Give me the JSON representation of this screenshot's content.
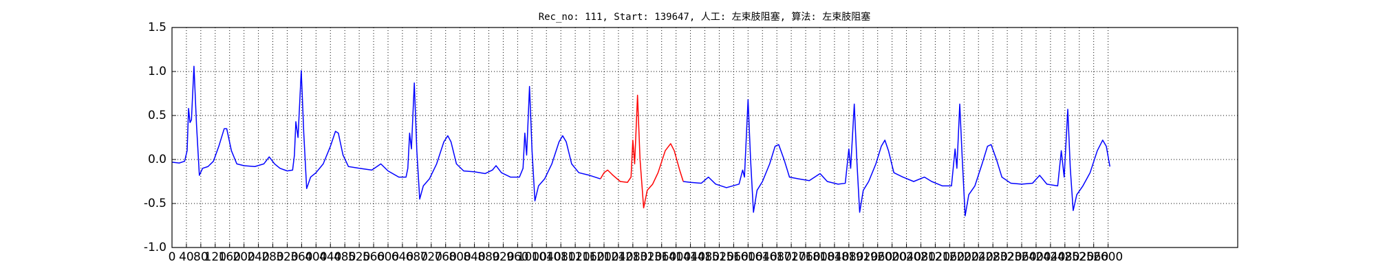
{
  "chart_data": {
    "type": "line",
    "title": "Rec_no: 111, Start: 139647, 人工: 左束肢阻塞, 算法: 左束肢阻塞",
    "xlim": [
      0,
      2960
    ],
    "ylim": [
      -1,
      1.5
    ],
    "xticks": [
      0,
      40,
      80,
      120,
      160,
      200,
      240,
      280,
      320,
      360,
      400,
      440,
      480,
      520,
      560,
      600,
      640,
      680,
      720,
      760,
      800,
      840,
      880,
      920,
      960,
      1000,
      1040,
      1080,
      1120,
      1160,
      1200,
      1240,
      1280,
      1320,
      1360,
      1400,
      1440,
      1480,
      1520,
      1560,
      1600,
      1640,
      1680,
      1720,
      1760,
      1800,
      1840,
      1880,
      1920,
      1960,
      2000,
      2040,
      2080,
      2120,
      2160,
      2200,
      2240,
      2280,
      2320,
      2360,
      2400,
      2440,
      2480,
      2520,
      2560,
      2600
    ],
    "yticks": [
      {
        "value": -1,
        "label": "-1.0"
      },
      -0.5,
      {
        "value": 0,
        "label": "0.0"
      },
      0.5,
      {
        "value": 1,
        "label": "1.0"
      },
      1.5
    ],
    "grid": true,
    "series": [
      {
        "color": "#0000ff",
        "x": [
          0,
          20,
          35,
          42,
          46,
          50,
          54,
          61,
          68,
          76,
          85,
          100,
          115,
          130,
          145,
          152,
          165,
          180,
          200,
          230,
          255,
          270,
          285,
          300,
          320,
          335,
          340,
          344,
          350,
          359,
          366,
          374,
          385,
          400,
          420,
          440,
          454,
          462,
          475,
          490,
          520,
          555,
          580,
          600,
          630,
          650,
          655,
          660,
          665,
          673,
          680,
          688,
          698,
          715,
          735,
          755,
          766,
          775,
          790,
          810,
          840,
          870,
          890,
          900,
          915,
          940,
          965,
          975,
          980,
          985,
          993,
          1000,
          1008,
          1018,
          1035,
          1055,
          1075,
          1085,
          1095,
          1110,
          1130,
          1160,
          1190,
          1300,
          1420,
          1440,
          1470,
          1490,
          1510,
          1540,
          1575,
          1585,
          1590,
          1600,
          1607,
          1615,
          1625,
          1640,
          1660,
          1675,
          1685,
          1700,
          1715,
          1740,
          1770,
          1800,
          1820,
          1850,
          1870,
          1880,
          1885,
          1895,
          1902,
          1910,
          1920,
          1935,
          1955,
          1970,
          1980,
          1990,
          2005,
          2030,
          2060,
          2090,
          2110,
          2140,
          2165,
          2175,
          2180,
          2188,
          2195,
          2203,
          2213,
          2230,
          2250,
          2265,
          2275,
          2290,
          2305,
          2330,
          2360,
          2390,
          2410,
          2430,
          2460,
          2470,
          2478,
          2488,
          2495,
          2503,
          2513,
          2530,
          2550,
          2570,
          2585,
          2595,
          2605
        ],
        "values": [
          -0.03,
          -0.04,
          -0.02,
          0.1,
          0.58,
          0.42,
          0.45,
          1.06,
          0.4,
          -0.18,
          -0.1,
          -0.08,
          -0.02,
          0.15,
          0.35,
          0.35,
          0.1,
          -0.05,
          -0.07,
          -0.08,
          -0.05,
          0.03,
          -0.05,
          -0.1,
          -0.13,
          -0.12,
          0.05,
          0.43,
          0.25,
          1.01,
          0.3,
          -0.33,
          -0.2,
          -0.15,
          -0.05,
          0.15,
          0.32,
          0.3,
          0.05,
          -0.08,
          -0.1,
          -0.12,
          -0.05,
          -0.13,
          -0.2,
          -0.2,
          -0.1,
          0.3,
          0.12,
          0.87,
          0.1,
          -0.45,
          -0.3,
          -0.22,
          -0.05,
          0.2,
          0.27,
          0.2,
          -0.05,
          -0.13,
          -0.14,
          -0.16,
          -0.12,
          -0.07,
          -0.15,
          -0.2,
          -0.2,
          -0.1,
          0.3,
          0.05,
          0.83,
          0.1,
          -0.47,
          -0.3,
          -0.22,
          -0.05,
          0.2,
          0.27,
          0.2,
          -0.05,
          -0.15,
          -0.18,
          -0.22,
          null,
          -0.25,
          -0.26,
          -0.27,
          -0.2,
          -0.28,
          -0.32,
          -0.28,
          -0.12,
          -0.2,
          0.68,
          0.0,
          -0.6,
          -0.35,
          -0.25,
          -0.05,
          0.15,
          0.17,
          0.0,
          -0.2,
          -0.22,
          -0.24,
          -0.16,
          -0.25,
          -0.28,
          -0.27,
          0.12,
          -0.1,
          0.63,
          0.0,
          -0.6,
          -0.35,
          -0.25,
          -0.05,
          0.15,
          0.22,
          0.1,
          -0.15,
          -0.2,
          -0.25,
          -0.2,
          -0.25,
          -0.3,
          -0.3,
          0.12,
          -0.1,
          0.63,
          0.0,
          -0.64,
          -0.4,
          -0.3,
          -0.05,
          0.15,
          0.17,
          0.0,
          -0.2,
          -0.27,
          -0.28,
          -0.27,
          -0.18,
          -0.28,
          -0.3,
          0.1,
          -0.2,
          0.57,
          -0.1,
          -0.58,
          -0.4,
          -0.3,
          -0.15,
          0.1,
          0.22,
          0.15,
          -0.08
        ]
      },
      {
        "color": "#ff0000",
        "x": [
          1190,
          1200,
          1210,
          1225,
          1245,
          1265,
          1275,
          1280,
          1285,
          1293,
          1300,
          1310,
          1320,
          1335,
          1350,
          1370,
          1385,
          1395,
          1410,
          1420
        ],
        "values": [
          -0.22,
          -0.15,
          -0.12,
          -0.18,
          -0.25,
          -0.26,
          -0.2,
          0.22,
          -0.05,
          0.73,
          0.0,
          -0.55,
          -0.35,
          -0.28,
          -0.15,
          0.1,
          0.18,
          0.1,
          -0.12,
          -0.25
        ]
      }
    ]
  }
}
